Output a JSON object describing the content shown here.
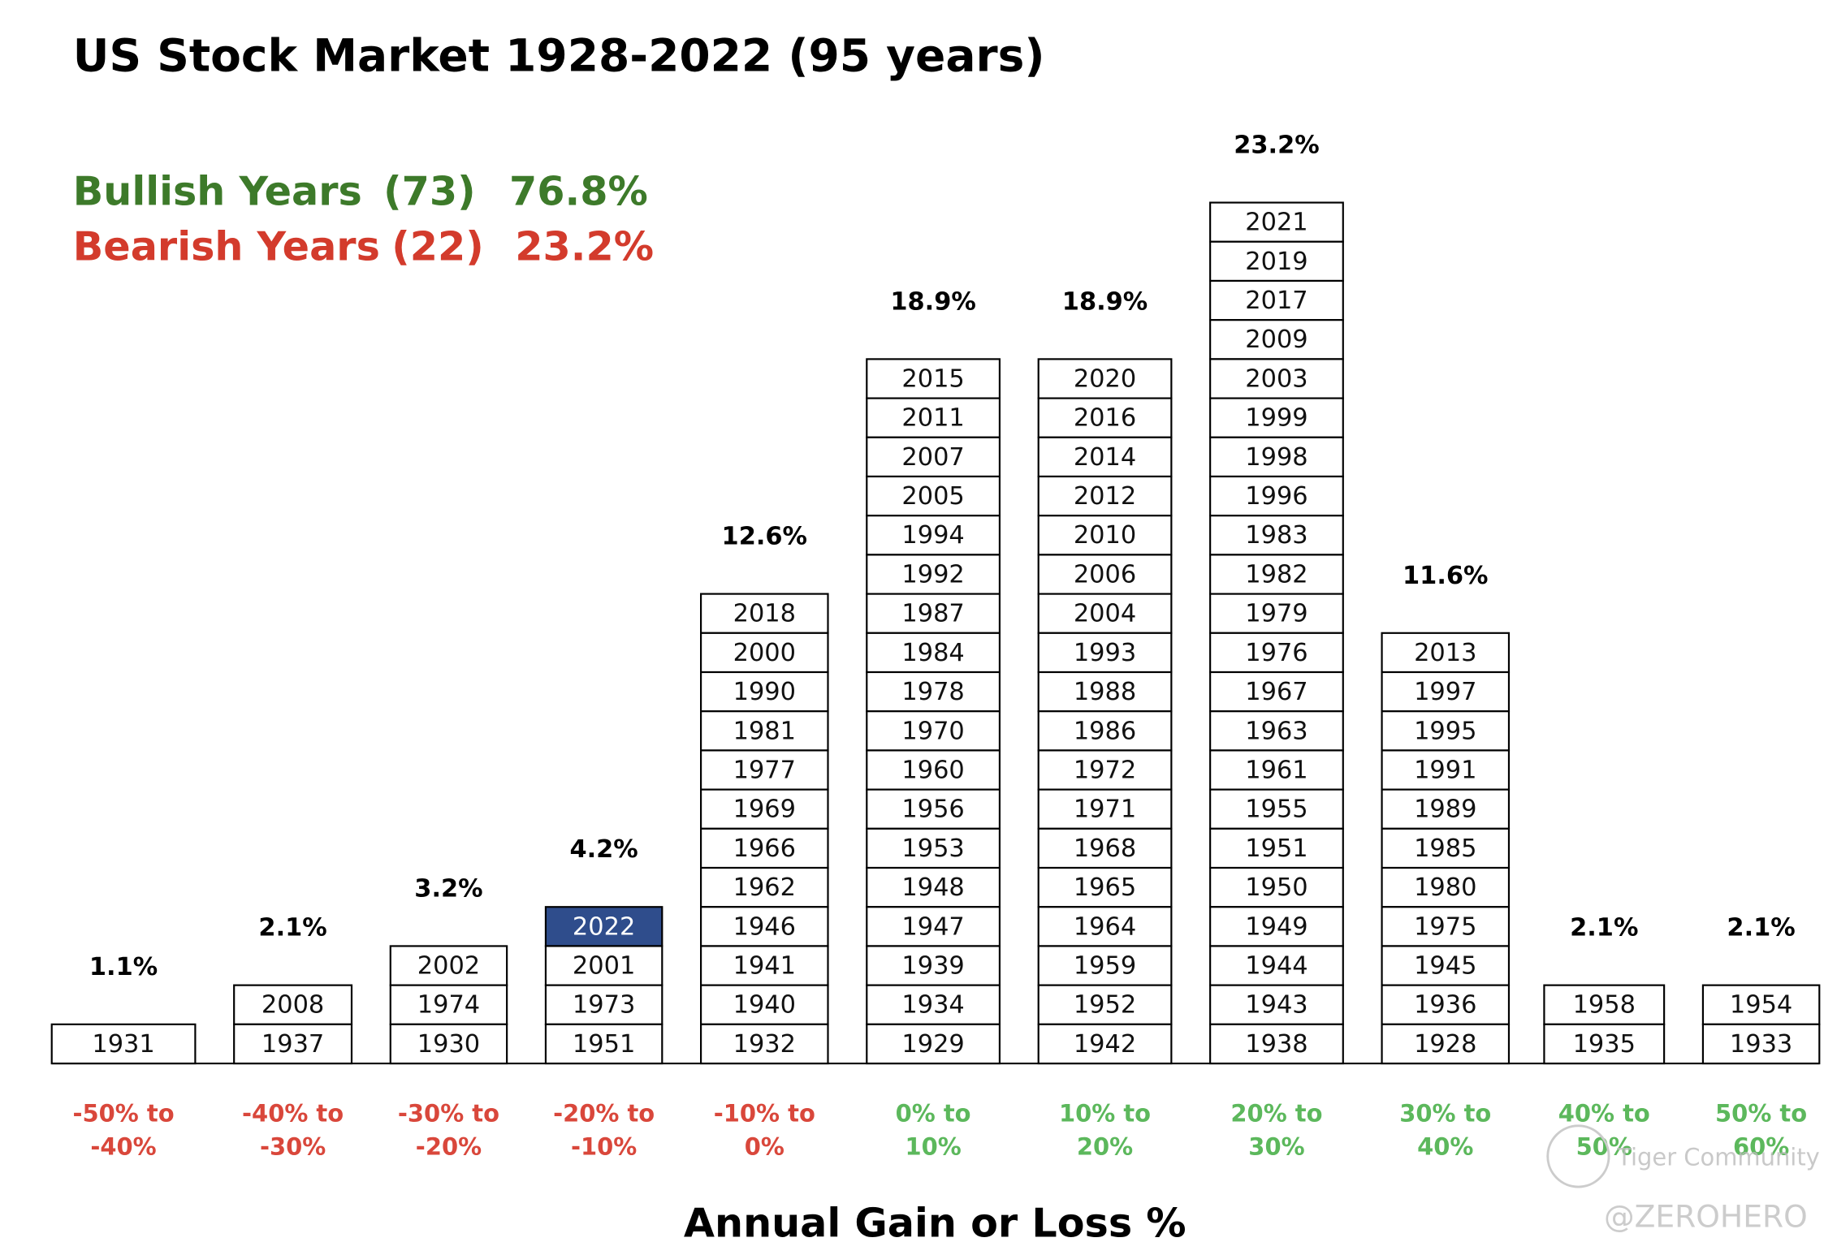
{
  "chart_data": {
    "type": "year-stack",
    "title": "US Stock Market 1928-2022 (95 years)",
    "summary": [
      {
        "label": "Bullish Years",
        "count": "(73)",
        "share": "76.8%",
        "color": "#3d7a2a"
      },
      {
        "label": "Bearish Years",
        "count": "(22)",
        "share": "23.2%",
        "color": "#d33b2c"
      }
    ],
    "x_label": "Annual Gain or Loss %",
    "highlight_color": "#2f4d8c",
    "columns": [
      {
        "label": [
          "-50% to",
          "-40%"
        ],
        "share": "1.1%",
        "color": "#d9473b",
        "years": [
          "1931"
        ]
      },
      {
        "label": [
          "-40% to",
          "-30%"
        ],
        "share": "2.1%",
        "color": "#d9473b",
        "years": [
          "2008",
          "1937"
        ]
      },
      {
        "label": [
          "-30% to",
          "-20%"
        ],
        "share": "3.2%",
        "color": "#d9473b",
        "years": [
          "2002",
          "1974",
          "1930"
        ]
      },
      {
        "label": [
          "-20% to",
          "-10%"
        ],
        "share": "4.2%",
        "color": "#d9473b",
        "years": [
          {
            "year": "2022",
            "highlight": true
          },
          "2001",
          "1973",
          "1951"
        ]
      },
      {
        "label": [
          "-10% to",
          "0%"
        ],
        "share": "12.6%",
        "color": "#d9473b",
        "years": [
          "2018",
          "2000",
          "1990",
          "1981",
          "1977",
          "1969",
          "1966",
          "1962",
          "1946",
          "1941",
          "1940",
          "1932"
        ]
      },
      {
        "label": [
          "0% to",
          "10%"
        ],
        "share": "18.9%",
        "color": "#5cb85c",
        "years": [
          "2015",
          "2011",
          "2007",
          "2005",
          "1994",
          "1992",
          "1987",
          "1984",
          "1978",
          "1970",
          "1960",
          "1956",
          "1953",
          "1948",
          "1947",
          "1939",
          "1934",
          "1929"
        ]
      },
      {
        "label": [
          "10% to",
          "20%"
        ],
        "share": "18.9%",
        "color": "#5cb85c",
        "years": [
          "2020",
          "2016",
          "2014",
          "2012",
          "2010",
          "2006",
          "2004",
          "1993",
          "1988",
          "1986",
          "1972",
          "1971",
          "1968",
          "1965",
          "1964",
          "1959",
          "1952",
          "1942"
        ]
      },
      {
        "label": [
          "20% to",
          "30%"
        ],
        "share": "23.2%",
        "color": "#5cb85c",
        "years": [
          "2021",
          "2019",
          "2017",
          "2009",
          "2003",
          "1999",
          "1998",
          "1996",
          "1983",
          "1982",
          "1979",
          "1976",
          "1967",
          "1963",
          "1961",
          "1955",
          "1951",
          "1950",
          "1949",
          "1944",
          "1943",
          "1938"
        ]
      },
      {
        "label": [
          "30% to",
          "40%"
        ],
        "share": "11.6%",
        "color": "#5cb85c",
        "years": [
          "2013",
          "1997",
          "1995",
          "1991",
          "1989",
          "1985",
          "1980",
          "1975",
          "1945",
          "1936",
          "1928"
        ]
      },
      {
        "label": [
          "40% to",
          "50%"
        ],
        "share": "2.1%",
        "color": "#5cb85c",
        "years": [
          "1958",
          "1935"
        ]
      },
      {
        "label": [
          "50% to",
          "60%"
        ],
        "share": "2.1%",
        "color": "#5cb85c",
        "years": [
          "1954",
          "1933"
        ]
      }
    ],
    "watermarks": [
      "Tiger Community",
      "@ZEROHERO"
    ]
  }
}
